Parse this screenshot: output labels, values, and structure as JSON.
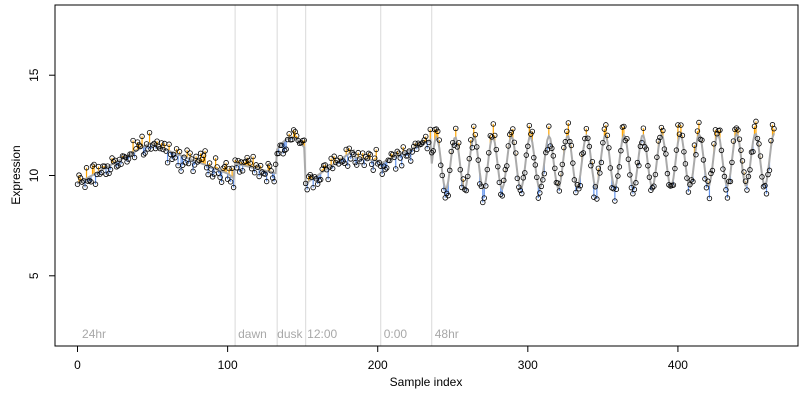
{
  "chart_data": {
    "type": "scatter",
    "title": "",
    "xlabel": "Sample index",
    "ylabel": "Expression",
    "xlim": [
      -15,
      480
    ],
    "ylim": [
      1.5,
      18.5
    ],
    "xticks": [
      0,
      100,
      200,
      300,
      400
    ],
    "yticks": [
      5,
      10,
      15
    ],
    "grid": false,
    "legend": "none",
    "colors": {
      "points_edge": "#000000",
      "fit_line": "#aaaaaa",
      "above_fit": "#ffa500",
      "below_fit": "#6495ed",
      "separator": "#d9d9d9",
      "annotation": "#a8a8a8"
    },
    "vlines": [
      105,
      133,
      152,
      202,
      236
    ],
    "annotations": [
      {
        "x": 3,
        "text": "24hr"
      },
      {
        "x": 107,
        "text": "dawn"
      },
      {
        "x": 133,
        "text": "dusk"
      },
      {
        "x": 153,
        "text": "12:00"
      },
      {
        "x": 204,
        "text": "0:00"
      },
      {
        "x": 238,
        "text": "48hr"
      }
    ]
  }
}
